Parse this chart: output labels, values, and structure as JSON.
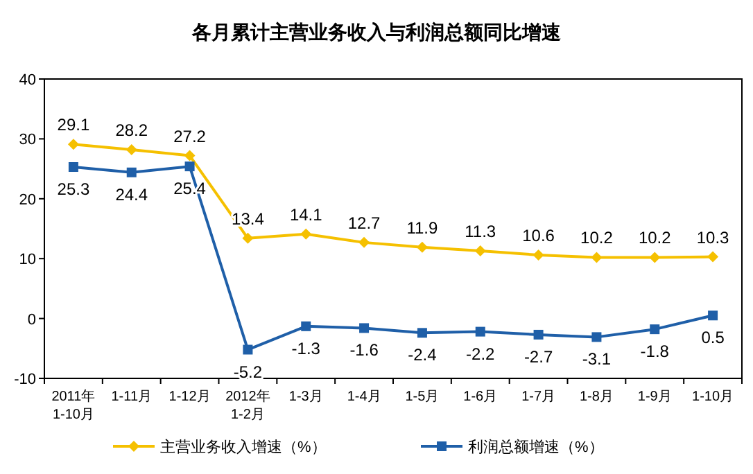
{
  "chart_data": {
    "type": "line",
    "title": "各月累计主营业务收入与利润总额同比增速",
    "categories": [
      "2011年\n1-10月",
      "1-11月",
      "1-12月",
      "2012年\n1-2月",
      "1-3月",
      "1-4月",
      "1-5月",
      "1-6月",
      "1-7月",
      "1-8月",
      "1-9月",
      "1-10月"
    ],
    "series": [
      {
        "name": "主营业务收入增速（%）",
        "color": "#f5c000",
        "marker": "diamond",
        "values": [
          29.1,
          28.2,
          27.2,
          13.4,
          14.1,
          12.7,
          11.9,
          11.3,
          10.6,
          10.2,
          10.2,
          10.3
        ]
      },
      {
        "name": "利润总额增速（%）",
        "color": "#1f5fa8",
        "marker": "square",
        "values": [
          25.3,
          24.4,
          25.4,
          -5.2,
          -1.3,
          -1.6,
          -2.4,
          -2.2,
          -2.7,
          -3.1,
          -1.8,
          0.5
        ]
      }
    ],
    "ylim": [
      -10,
      40
    ],
    "yticks": [
      -10,
      0,
      10,
      20,
      30,
      40
    ],
    "data_labels": true,
    "legend": "bottom",
    "grid": false
  }
}
